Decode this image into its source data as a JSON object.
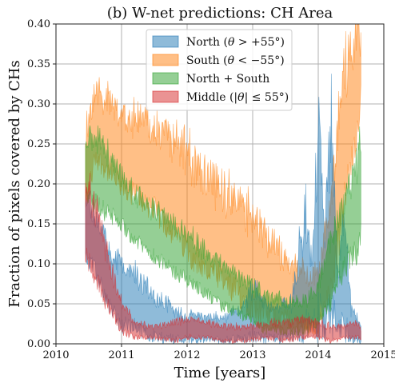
{
  "chart_data": {
    "type": "area",
    "title": "(b) W-net predictions: CH Area",
    "xlabel": "Time [years]",
    "ylabel": "Fraction of pixels covered by CHs",
    "xlim": [
      2010,
      2015
    ],
    "ylim": [
      0.0,
      0.4
    ],
    "x_ticks": [
      "2010",
      "2011",
      "2012",
      "2013",
      "2014",
      "2015"
    ],
    "y_ticks": [
      "0.00",
      "0.05",
      "0.10",
      "0.15",
      "0.20",
      "0.25",
      "0.30",
      "0.35",
      "0.40"
    ],
    "grid": true,
    "legend_position": "top-center",
    "series": [
      {
        "name": "North (θ > +55°)",
        "legend_parts": [
          "North (",
          "θ",
          " > +55°)"
        ],
        "color": "#1f77b4",
        "x": [
          2010.45,
          2010.6,
          2010.8,
          2011.0,
          2011.2,
          2011.5,
          2011.8,
          2012.0,
          2012.3,
          2012.6,
          2012.8,
          2013.0,
          2013.3,
          2013.6,
          2013.8,
          2013.9,
          2014.0,
          2014.1,
          2014.2,
          2014.3,
          2014.4,
          2014.5,
          2014.65
        ],
        "low": [
          0.1,
          0.08,
          0.04,
          0.01,
          0.01,
          0.0,
          0.0,
          0.0,
          0.0,
          0.0,
          0.0,
          0.0,
          0.0,
          0.0,
          0.0,
          0.0,
          0.0,
          0.0,
          0.0,
          0.0,
          0.0,
          0.0,
          0.0
        ],
        "high": [
          0.2,
          0.17,
          0.13,
          0.11,
          0.1,
          0.07,
          0.05,
          0.04,
          0.04,
          0.04,
          0.05,
          0.08,
          0.05,
          0.06,
          0.2,
          0.12,
          0.3,
          0.15,
          0.35,
          0.1,
          0.2,
          0.05,
          0.03
        ]
      },
      {
        "name": "South (θ < −55°)",
        "legend_parts": [
          "South (",
          "θ",
          " < −55°)"
        ],
        "color": "#ff7f0e",
        "x": [
          2010.45,
          2010.6,
          2010.8,
          2011.0,
          2011.2,
          2011.5,
          2011.8,
          2012.0,
          2012.2,
          2012.5,
          2012.8,
          2013.0,
          2013.2,
          2013.5,
          2013.8,
          2014.0,
          2014.2,
          2014.3,
          2014.4,
          2014.5,
          2014.6,
          2014.65
        ],
        "low": [
          0.15,
          0.22,
          0.2,
          0.18,
          0.17,
          0.15,
          0.12,
          0.1,
          0.08,
          0.06,
          0.04,
          0.03,
          0.02,
          0.02,
          0.01,
          0.01,
          0.05,
          0.1,
          0.15,
          0.2,
          0.25,
          0.3
        ],
        "high": [
          0.28,
          0.34,
          0.32,
          0.3,
          0.31,
          0.29,
          0.28,
          0.26,
          0.24,
          0.22,
          0.2,
          0.18,
          0.15,
          0.12,
          0.1,
          0.1,
          0.2,
          0.3,
          0.38,
          0.4,
          0.4,
          0.4
        ]
      },
      {
        "name": "North + South",
        "legend_parts": [
          "North + South"
        ],
        "color": "#2ca02c",
        "x": [
          2010.45,
          2010.6,
          2010.8,
          2011.0,
          2011.2,
          2011.5,
          2011.8,
          2012.0,
          2012.2,
          2012.5,
          2012.8,
          2013.0,
          2013.2,
          2013.5,
          2013.8,
          2014.0,
          2014.2,
          2014.4,
          2014.6,
          2014.65
        ],
        "low": [
          0.18,
          0.16,
          0.15,
          0.14,
          0.12,
          0.1,
          0.08,
          0.07,
          0.06,
          0.04,
          0.03,
          0.02,
          0.01,
          0.01,
          0.01,
          0.02,
          0.04,
          0.08,
          0.1,
          0.12
        ],
        "high": [
          0.26,
          0.28,
          0.25,
          0.22,
          0.2,
          0.18,
          0.16,
          0.15,
          0.13,
          0.11,
          0.09,
          0.08,
          0.07,
          0.06,
          0.06,
          0.08,
          0.15,
          0.2,
          0.25,
          0.27
        ]
      },
      {
        "name": "Middle (|θ| ≤ 55°)",
        "legend_parts": [
          "Middle (|",
          "θ",
          "| ≤ 55°)"
        ],
        "color": "#d62728",
        "x": [
          2010.45,
          2010.55,
          2010.7,
          2010.85,
          2011.0,
          2011.2,
          2011.5,
          2011.8,
          2012.0,
          2012.3,
          2012.6,
          2012.9,
          2013.2,
          2013.5,
          2013.8,
          2014.0,
          2014.2,
          2014.4,
          2014.6,
          2014.65
        ],
        "low": [
          0.1,
          0.08,
          0.05,
          0.03,
          0.01,
          0.005,
          0.005,
          0.0,
          0.005,
          0.005,
          0.0,
          0.0,
          0.005,
          0.0,
          0.005,
          0.005,
          0.0,
          0.005,
          0.005,
          0.005
        ],
        "high": [
          0.22,
          0.2,
          0.16,
          0.1,
          0.06,
          0.03,
          0.025,
          0.03,
          0.035,
          0.03,
          0.025,
          0.025,
          0.03,
          0.03,
          0.035,
          0.03,
          0.025,
          0.025,
          0.03,
          0.02
        ]
      }
    ]
  }
}
